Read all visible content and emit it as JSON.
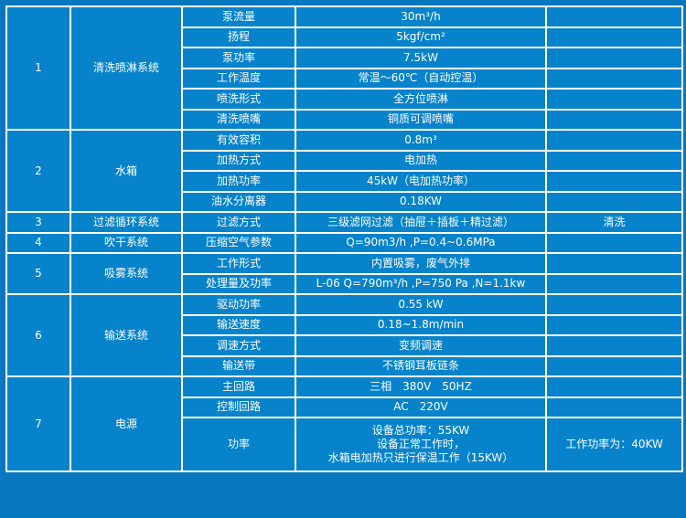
{
  "colors": {
    "background": "#0877bd",
    "cell": "#0683cb",
    "border": "#ffffff",
    "text": "#ffffff"
  },
  "groups": [
    {
      "no": "1",
      "system": "清洗喷淋系统",
      "rows": [
        {
          "item": "泵流量",
          "value": "30m³/h",
          "note": ""
        },
        {
          "item": "扬程",
          "value": "5kgf/cm²",
          "note": ""
        },
        {
          "item": "泵功率",
          "value": "7.5kW",
          "note": ""
        },
        {
          "item": "工作温度",
          "value": "常温～60℃（自动控温）",
          "note": ""
        },
        {
          "item": "喷洗形式",
          "value": "全方位喷淋",
          "note": ""
        },
        {
          "item": "清洗喷嘴",
          "value": "铜质可调喷嘴",
          "note": ""
        }
      ]
    },
    {
      "no": "2",
      "system": "水箱",
      "rows": [
        {
          "item": "有效容积",
          "value": "0.8m³",
          "note": ""
        },
        {
          "item": "加热方式",
          "value": "电加热",
          "note": ""
        },
        {
          "item": "加热功率",
          "value": "45kW（电加热功率）",
          "note": ""
        },
        {
          "item": "油水分离器",
          "value": "0.18KW",
          "note": ""
        }
      ]
    },
    {
      "no": "3",
      "system": "过滤循环系统",
      "rows": [
        {
          "item": "过滤方式",
          "value": "三级滤网过滤（抽屉＋插板＋精过滤）",
          "note": "清洗"
        }
      ]
    },
    {
      "no": "4",
      "system": "吹干系统",
      "rows": [
        {
          "item": "压缩空气参数",
          "value": "Q=90m3/h ,P=0.4~0.6MPa",
          "note": ""
        }
      ]
    },
    {
      "no": "5",
      "system": "吸雾系统",
      "rows": [
        {
          "item": "工作形式",
          "value": "内置吸雾，废气外排",
          "note": ""
        },
        {
          "item": "处理量及功率",
          "value": "L-06 Q=790m³/h ,P=750 Pa ,N=1.1kw",
          "note": ""
        }
      ]
    },
    {
      "no": "6",
      "system": "输送系统",
      "rows": [
        {
          "item": "驱动功率",
          "value": "0.55 kW",
          "note": ""
        },
        {
          "item": "输送速度",
          "value": "0.18~1.8m/min",
          "note": ""
        },
        {
          "item": "调速方式",
          "value": "变频调速",
          "note": ""
        },
        {
          "item": "输送带",
          "value": "不锈钢耳板链条",
          "note": ""
        }
      ]
    },
    {
      "no": "7",
      "system": "电源",
      "rows": [
        {
          "item": "主回路",
          "value": "三相　380V　50HZ",
          "note": ""
        },
        {
          "item": "控制回路",
          "value": "AC　220V",
          "note": ""
        }
      ],
      "power": {
        "item": "功率",
        "lines": [
          "设备总功率：55KW",
          "设备正常工作时，",
          "水箱电加热只进行保温工作（15KW）"
        ],
        "note": "工作功率为：40KW"
      }
    }
  ]
}
